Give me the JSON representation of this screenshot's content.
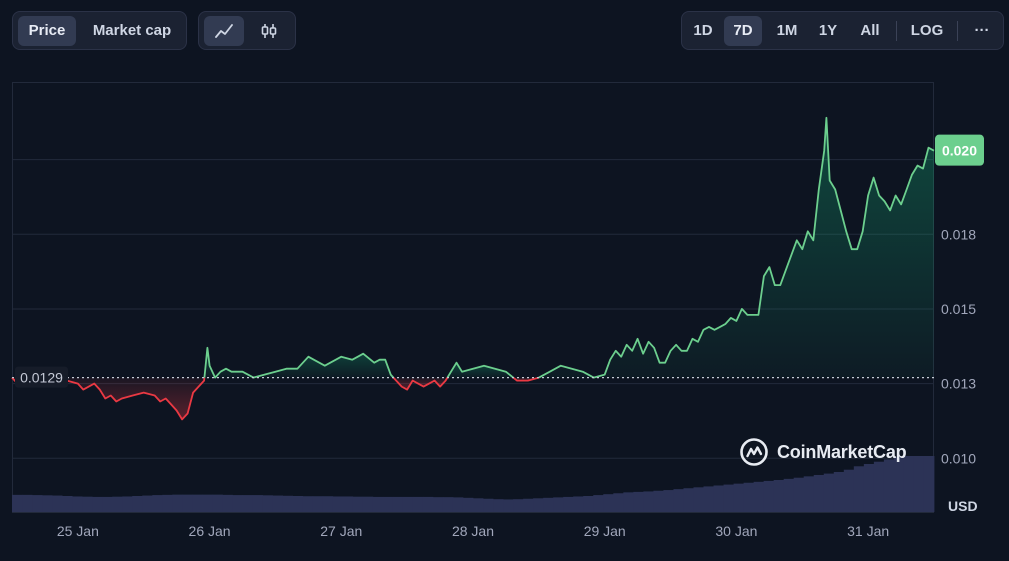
{
  "toolbar": {
    "metric_tabs": [
      {
        "label": "Price",
        "active": true
      },
      {
        "label": "Market cap",
        "active": false
      }
    ],
    "chart_type_icons": [
      "line-chart-icon",
      "candlestick-icon"
    ],
    "range_tabs": [
      {
        "label": "1D",
        "active": false
      },
      {
        "label": "7D",
        "active": true
      },
      {
        "label": "1M",
        "active": false
      },
      {
        "label": "1Y",
        "active": false
      },
      {
        "label": "All",
        "active": false
      }
    ],
    "log_label": "LOG",
    "more_label": "···"
  },
  "watermark": "CoinMarketCap",
  "colors": {
    "background": "#0d1421",
    "up": "#16c784",
    "up_line": "#6ccf8e",
    "down_line": "#ea3943",
    "grid": "#222a3b",
    "volume": "#2c3356"
  },
  "chart_data": {
    "type": "line",
    "x_tick_labels": [
      "25 Jan",
      "26 Jan",
      "27 Jan",
      "28 Jan",
      "29 Jan",
      "30 Jan",
      "31 Jan"
    ],
    "y_tick_labels": [
      "0.010",
      "0.013",
      "0.015",
      "0.018",
      "0.020"
    ],
    "y_ticks": [
      0.0102,
      0.0127,
      0.0152,
      0.0177,
      0.0202
    ],
    "ylim": [
      0.0084,
      0.0228
    ],
    "xlim": [
      0,
      168
    ],
    "baseline": 0.0129,
    "baseline_label": "0.0129",
    "current_price_label": "0.020",
    "currency_label": "USD",
    "grid": true,
    "series": [
      {
        "points": [
          [
            0,
            0.0129
          ],
          [
            1,
            0.0127
          ],
          [
            2,
            0.0126
          ],
          [
            3,
            0.0127
          ],
          [
            4,
            0.0126
          ],
          [
            6,
            0.0127
          ],
          [
            8,
            0.0126
          ],
          [
            10,
            0.0128
          ],
          [
            12,
            0.0127
          ],
          [
            13,
            0.0125
          ],
          [
            14,
            0.0126
          ],
          [
            15,
            0.0127
          ],
          [
            16,
            0.0125
          ],
          [
            17,
            0.0122
          ],
          [
            18,
            0.0123
          ],
          [
            19,
            0.0121
          ],
          [
            20,
            0.0122
          ],
          [
            22,
            0.0123
          ],
          [
            24,
            0.0124
          ],
          [
            26,
            0.0123
          ],
          [
            27,
            0.0121
          ],
          [
            28,
            0.0122
          ],
          [
            29,
            0.012
          ],
          [
            30,
            0.0118
          ],
          [
            31,
            0.0115
          ],
          [
            32,
            0.0117
          ],
          [
            33,
            0.0124
          ],
          [
            34,
            0.0126
          ],
          [
            35,
            0.0128
          ],
          [
            35.6,
            0.0139
          ],
          [
            36,
            0.0133
          ],
          [
            37,
            0.0129
          ],
          [
            38,
            0.0131
          ],
          [
            39,
            0.0132
          ],
          [
            40,
            0.0131
          ],
          [
            42,
            0.0131
          ],
          [
            44,
            0.0129
          ],
          [
            46,
            0.013
          ],
          [
            48,
            0.0131
          ],
          [
            50,
            0.0132
          ],
          [
            52,
            0.0132
          ],
          [
            54,
            0.0136
          ],
          [
            55,
            0.0135
          ],
          [
            57,
            0.0133
          ],
          [
            60,
            0.0136
          ],
          [
            62,
            0.0135
          ],
          [
            63,
            0.0136
          ],
          [
            64,
            0.0137
          ],
          [
            66,
            0.0134
          ],
          [
            67,
            0.0135
          ],
          [
            68,
            0.0135
          ],
          [
            69,
            0.013
          ],
          [
            70,
            0.0128
          ],
          [
            71,
            0.0126
          ],
          [
            72,
            0.0125
          ],
          [
            73,
            0.0128
          ],
          [
            74,
            0.0127
          ],
          [
            75,
            0.0126
          ],
          [
            76,
            0.0127
          ],
          [
            77,
            0.0128
          ],
          [
            78,
            0.0126
          ],
          [
            79,
            0.0128
          ],
          [
            80,
            0.0131
          ],
          [
            81,
            0.0134
          ],
          [
            82,
            0.0131
          ],
          [
            84,
            0.0132
          ],
          [
            86,
            0.0133
          ],
          [
            88,
            0.0132
          ],
          [
            90,
            0.0131
          ],
          [
            92,
            0.0128
          ],
          [
            94,
            0.0128
          ],
          [
            96,
            0.0129
          ],
          [
            98,
            0.0131
          ],
          [
            100,
            0.0133
          ],
          [
            102,
            0.0132
          ],
          [
            104,
            0.0131
          ],
          [
            106,
            0.0129
          ],
          [
            108,
            0.013
          ],
          [
            109,
            0.0135
          ],
          [
            110,
            0.0138
          ],
          [
            111,
            0.0136
          ],
          [
            112,
            0.014
          ],
          [
            113,
            0.0138
          ],
          [
            114,
            0.0142
          ],
          [
            115,
            0.0137
          ],
          [
            116,
            0.0141
          ],
          [
            117,
            0.0139
          ],
          [
            118,
            0.0134
          ],
          [
            119,
            0.0134
          ],
          [
            120,
            0.0138
          ],
          [
            121,
            0.014
          ],
          [
            122,
            0.0138
          ],
          [
            123,
            0.0138
          ],
          [
            124,
            0.0142
          ],
          [
            125,
            0.0141
          ],
          [
            126,
            0.0145
          ],
          [
            127,
            0.0146
          ],
          [
            128,
            0.0145
          ],
          [
            129,
            0.0146
          ],
          [
            130,
            0.0147
          ],
          [
            131,
            0.0149
          ],
          [
            132,
            0.0148
          ],
          [
            133,
            0.0152
          ],
          [
            134,
            0.015
          ],
          [
            135,
            0.015
          ],
          [
            136,
            0.015
          ],
          [
            137,
            0.0163
          ],
          [
            138,
            0.0166
          ],
          [
            139,
            0.016
          ],
          [
            140,
            0.016
          ],
          [
            141,
            0.0165
          ],
          [
            142,
            0.017
          ],
          [
            143,
            0.0175
          ],
          [
            144,
            0.0172
          ],
          [
            145,
            0.0178
          ],
          [
            146,
            0.0175
          ],
          [
            147,
            0.0192
          ],
          [
            148,
            0.0205
          ],
          [
            148.4,
            0.0216
          ],
          [
            149,
            0.0195
          ],
          [
            150,
            0.0192
          ],
          [
            151,
            0.0185
          ],
          [
            152,
            0.0178
          ],
          [
            153,
            0.0172
          ],
          [
            154,
            0.0172
          ],
          [
            155,
            0.0178
          ],
          [
            156,
            0.019
          ],
          [
            157,
            0.0196
          ],
          [
            158,
            0.019
          ],
          [
            159,
            0.0188
          ],
          [
            160,
            0.0185
          ],
          [
            161,
            0.019
          ],
          [
            162,
            0.0187
          ],
          [
            163,
            0.0192
          ],
          [
            164,
            0.0197
          ],
          [
            165,
            0.02
          ],
          [
            166,
            0.0199
          ],
          [
            167,
            0.0206
          ],
          [
            168,
            0.0205
          ]
        ]
      }
    ],
    "volume_relative": [
      0.75,
      0.75,
      0.74,
      0.73,
      0.72,
      0.7,
      0.68,
      0.67,
      0.66,
      0.66,
      0.67,
      0.68,
      0.7,
      0.72,
      0.74,
      0.75,
      0.76,
      0.76,
      0.76,
      0.76,
      0.76,
      0.75,
      0.74,
      0.74,
      0.74,
      0.73,
      0.72,
      0.71,
      0.7,
      0.69,
      0.69,
      0.69,
      0.68,
      0.68,
      0.67,
      0.67,
      0.66,
      0.66,
      0.66,
      0.66,
      0.66,
      0.66,
      0.65,
      0.65,
      0.64,
      0.62,
      0.6,
      0.58,
      0.56,
      0.55,
      0.56,
      0.58,
      0.6,
      0.62,
      0.64,
      0.66,
      0.68,
      0.7,
      0.74,
      0.78,
      0.82,
      0.86,
      0.88,
      0.9,
      0.93,
      0.96,
      1.0,
      1.04,
      1.08,
      1.12,
      1.16,
      1.2,
      1.24,
      1.28,
      1.32,
      1.36,
      1.4,
      1.45,
      1.5,
      1.56,
      1.62,
      1.68,
      1.75,
      1.85,
      2.0,
      2.1,
      2.2,
      2.3,
      2.4,
      2.45,
      2.45,
      2.45
    ]
  }
}
